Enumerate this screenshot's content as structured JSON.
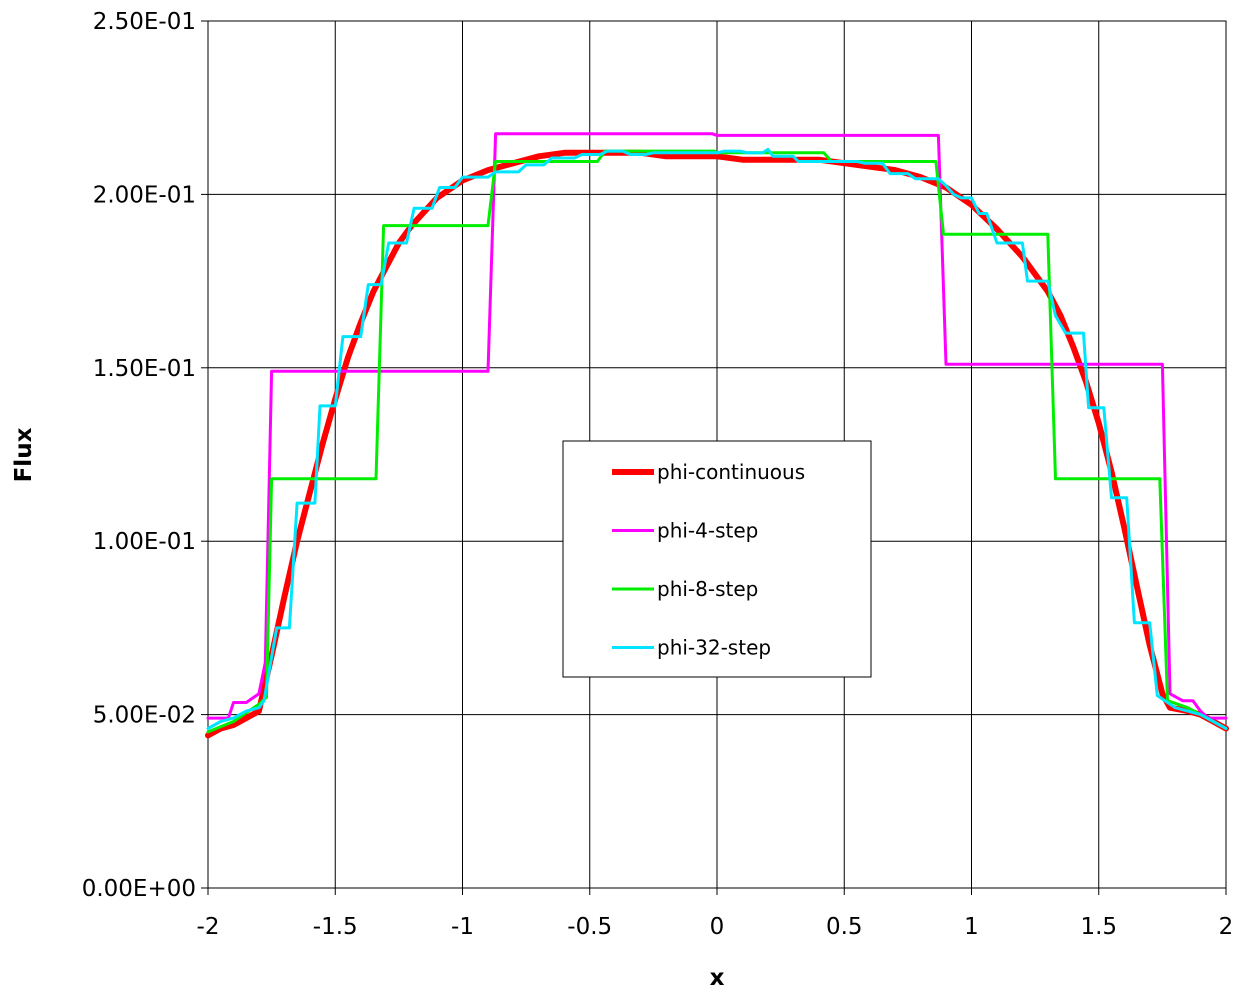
{
  "chart_data": {
    "type": "line",
    "title": "",
    "xlabel": "x",
    "ylabel": "Flux",
    "xlim": [
      -2,
      2
    ],
    "ylim": [
      0,
      0.25
    ],
    "x_ticks": [
      "-2",
      "-1.5",
      "-1",
      "-0.5",
      "0",
      "0.5",
      "1",
      "1.5",
      "2"
    ],
    "y_ticks": [
      "0.00E+00",
      "5.00E-02",
      "1.00E-01",
      "1.50E-01",
      "2.00E-01",
      "2.50E-01"
    ],
    "grid": true,
    "legend_position": "center",
    "series": [
      {
        "name": "phi-continuous",
        "color": "#ff0000",
        "points": [
          [
            -2.0,
            0.044
          ],
          [
            -1.95,
            0.046
          ],
          [
            -1.9,
            0.047
          ],
          [
            -1.85,
            0.049
          ],
          [
            -1.8,
            0.051
          ],
          [
            -1.75,
            0.067
          ],
          [
            -1.7,
            0.084
          ],
          [
            -1.65,
            0.1
          ],
          [
            -1.6,
            0.114
          ],
          [
            -1.55,
            0.128
          ],
          [
            -1.5,
            0.141
          ],
          [
            -1.45,
            0.153
          ],
          [
            -1.4,
            0.163
          ],
          [
            -1.35,
            0.172
          ],
          [
            -1.3,
            0.179
          ],
          [
            -1.25,
            0.186
          ],
          [
            -1.2,
            0.191
          ],
          [
            -1.1,
            0.199
          ],
          [
            -1.0,
            0.204
          ],
          [
            -0.9,
            0.207
          ],
          [
            -0.8,
            0.209
          ],
          [
            -0.7,
            0.211
          ],
          [
            -0.6,
            0.212
          ],
          [
            -0.5,
            0.212
          ],
          [
            -0.4,
            0.212
          ],
          [
            -0.3,
            0.212
          ],
          [
            -0.2,
            0.211
          ],
          [
            -0.1,
            0.211
          ],
          [
            0.0,
            0.211
          ],
          [
            0.1,
            0.21
          ],
          [
            0.2,
            0.21
          ],
          [
            0.3,
            0.21
          ],
          [
            0.4,
            0.21
          ],
          [
            0.5,
            0.209
          ],
          [
            0.6,
            0.208
          ],
          [
            0.7,
            0.207
          ],
          [
            0.8,
            0.205
          ],
          [
            0.9,
            0.202
          ],
          [
            1.0,
            0.197
          ],
          [
            1.1,
            0.19
          ],
          [
            1.2,
            0.182
          ],
          [
            1.3,
            0.172
          ],
          [
            1.35,
            0.165
          ],
          [
            1.4,
            0.156
          ],
          [
            1.45,
            0.146
          ],
          [
            1.5,
            0.134
          ],
          [
            1.55,
            0.12
          ],
          [
            1.6,
            0.104
          ],
          [
            1.65,
            0.087
          ],
          [
            1.7,
            0.07
          ],
          [
            1.75,
            0.056
          ],
          [
            1.78,
            0.052
          ],
          [
            1.85,
            0.051
          ],
          [
            1.9,
            0.05
          ],
          [
            1.95,
            0.048
          ],
          [
            2.0,
            0.046
          ]
        ]
      },
      {
        "name": "phi-4-step",
        "color": "#ff00ff",
        "points": [
          [
            -2.0,
            0.049
          ],
          [
            -1.95,
            0.049
          ],
          [
            -1.92,
            0.049
          ],
          [
            -1.9,
            0.0535
          ],
          [
            -1.85,
            0.0535
          ],
          [
            -1.83,
            0.0545
          ],
          [
            -1.8,
            0.056
          ],
          [
            -1.775,
            0.065
          ],
          [
            -1.75,
            0.149
          ],
          [
            -0.9,
            0.149
          ],
          [
            -0.87,
            0.2175
          ],
          [
            -0.02,
            0.2175
          ],
          [
            0.0,
            0.217
          ],
          [
            0.87,
            0.217
          ],
          [
            0.9,
            0.151
          ],
          [
            1.75,
            0.151
          ],
          [
            1.78,
            0.056
          ],
          [
            1.83,
            0.054
          ],
          [
            1.87,
            0.054
          ],
          [
            1.9,
            0.051
          ],
          [
            1.93,
            0.049
          ],
          [
            2.0,
            0.049
          ]
        ]
      },
      {
        "name": "phi-8-step",
        "color": "#00ee00",
        "points": [
          [
            -2.0,
            0.045
          ],
          [
            -1.9,
            0.048
          ],
          [
            -1.8,
            0.053
          ],
          [
            -1.77,
            0.055
          ],
          [
            -1.75,
            0.118
          ],
          [
            -1.34,
            0.118
          ],
          [
            -1.31,
            0.191
          ],
          [
            -0.9,
            0.191
          ],
          [
            -0.87,
            0.2095
          ],
          [
            -0.47,
            0.2095
          ],
          [
            -0.44,
            0.2125
          ],
          [
            -0.01,
            0.2125
          ],
          [
            0.0,
            0.212
          ],
          [
            0.42,
            0.212
          ],
          [
            0.45,
            0.2095
          ],
          [
            0.86,
            0.2095
          ],
          [
            0.89,
            0.1885
          ],
          [
            1.3,
            0.1885
          ],
          [
            1.33,
            0.118
          ],
          [
            1.74,
            0.118
          ],
          [
            1.77,
            0.054
          ],
          [
            1.85,
            0.052
          ],
          [
            1.95,
            0.048
          ],
          [
            2.0,
            0.046
          ]
        ]
      },
      {
        "name": "phi-32-step",
        "color": "#00e5ff",
        "points": [
          [
            -2.0,
            0.046
          ],
          [
            -1.95,
            0.048
          ],
          [
            -1.9,
            0.049
          ],
          [
            -1.85,
            0.051
          ],
          [
            -1.8,
            0.052
          ],
          [
            -1.78,
            0.054
          ],
          [
            -1.73,
            0.075
          ],
          [
            -1.68,
            0.075
          ],
          [
            -1.65,
            0.111
          ],
          [
            -1.58,
            0.111
          ],
          [
            -1.56,
            0.139
          ],
          [
            -1.5,
            0.139
          ],
          [
            -1.47,
            0.159
          ],
          [
            -1.4,
            0.159
          ],
          [
            -1.37,
            0.174
          ],
          [
            -1.32,
            0.174
          ],
          [
            -1.29,
            0.186
          ],
          [
            -1.22,
            0.186
          ],
          [
            -1.19,
            0.196
          ],
          [
            -1.12,
            0.196
          ],
          [
            -1.09,
            0.202
          ],
          [
            -1.03,
            0.202
          ],
          [
            -1.0,
            0.205
          ],
          [
            -0.9,
            0.205
          ],
          [
            -0.87,
            0.2065
          ],
          [
            -0.78,
            0.2065
          ],
          [
            -0.75,
            0.2085
          ],
          [
            -0.68,
            0.2085
          ],
          [
            -0.65,
            0.2105
          ],
          [
            -0.56,
            0.2105
          ],
          [
            -0.53,
            0.2115
          ],
          [
            -0.46,
            0.2115
          ],
          [
            -0.43,
            0.2125
          ],
          [
            -0.37,
            0.2125
          ],
          [
            -0.34,
            0.2115
          ],
          [
            -0.28,
            0.2115
          ],
          [
            -0.25,
            0.212
          ],
          [
            -0.12,
            0.212
          ],
          [
            -0.09,
            0.212
          ],
          [
            0.0,
            0.212
          ],
          [
            0.03,
            0.2125
          ],
          [
            0.09,
            0.2125
          ],
          [
            0.12,
            0.212
          ],
          [
            0.18,
            0.212
          ],
          [
            0.2,
            0.213
          ],
          [
            0.22,
            0.211
          ],
          [
            0.3,
            0.211
          ],
          [
            0.32,
            0.2095
          ],
          [
            0.55,
            0.2095
          ],
          [
            0.58,
            0.209
          ],
          [
            0.65,
            0.209
          ],
          [
            0.68,
            0.206
          ],
          [
            0.75,
            0.206
          ],
          [
            0.78,
            0.2045
          ],
          [
            0.87,
            0.2045
          ],
          [
            0.9,
            0.2025
          ],
          [
            0.93,
            0.2
          ],
          [
            0.96,
            0.199
          ],
          [
            1.0,
            0.199
          ],
          [
            1.03,
            0.1945
          ],
          [
            1.06,
            0.1945
          ],
          [
            1.1,
            0.186
          ],
          [
            1.14,
            0.186
          ],
          [
            1.18,
            0.186
          ],
          [
            1.2,
            0.186
          ],
          [
            1.22,
            0.175
          ],
          [
            1.3,
            0.175
          ],
          [
            1.33,
            0.165
          ],
          [
            1.37,
            0.16
          ],
          [
            1.44,
            0.16
          ],
          [
            1.46,
            0.1385
          ],
          [
            1.52,
            0.1385
          ],
          [
            1.55,
            0.1125
          ],
          [
            1.61,
            0.1125
          ],
          [
            1.64,
            0.0765
          ],
          [
            1.7,
            0.0765
          ],
          [
            1.73,
            0.0555
          ],
          [
            1.8,
            0.052
          ],
          [
            1.85,
            0.051
          ],
          [
            1.9,
            0.05
          ],
          [
            1.95,
            0.048
          ],
          [
            2.0,
            0.046
          ]
        ]
      }
    ]
  }
}
